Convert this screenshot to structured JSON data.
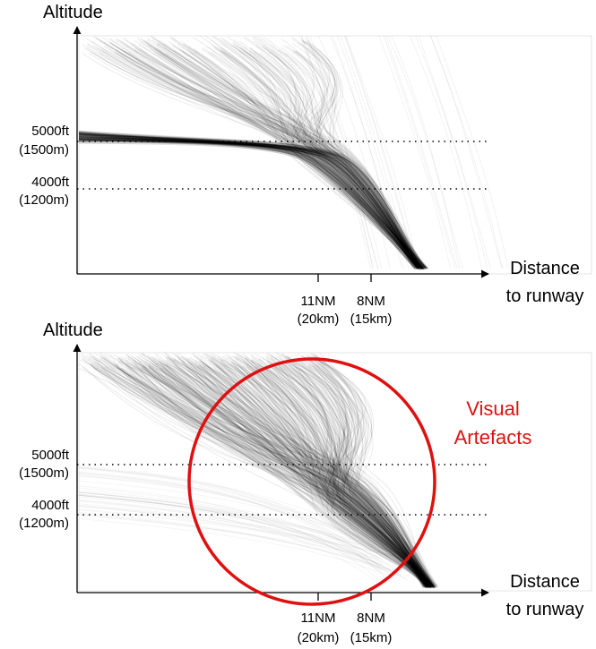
{
  "chart_data": [
    {
      "type": "line",
      "panel": "top",
      "ylabel": "Altitude",
      "xlabel_lines": [
        "Distance",
        "to runway"
      ],
      "reference_lines": [
        {
          "line1": "5000ft",
          "line2": "(1500m)"
        },
        {
          "line1": "4000ft",
          "line2": "(1200m)"
        }
      ],
      "x_ticks": [
        {
          "line1": "11NM",
          "line2": "(20km)"
        },
        {
          "line1": "8NM",
          "line2": "(15km)"
        }
      ],
      "series_color": "#000000",
      "line_opacity": 0.08,
      "annotation": null
    },
    {
      "type": "line",
      "panel": "bottom",
      "ylabel": "Altitude",
      "xlabel_lines": [
        "Distance",
        "to runway"
      ],
      "reference_lines": [
        {
          "line1": "5000ft",
          "line2": "(1500m)"
        },
        {
          "line1": "4000ft",
          "line2": "(1200m)"
        }
      ],
      "x_ticks": [
        {
          "line1": "11NM",
          "line2": "(20km)"
        },
        {
          "line1": "8NM",
          "line2": "(15km)"
        }
      ],
      "series_color": "#000000",
      "line_opacity": 0.08,
      "annotation": {
        "lines": [
          "Visual",
          "Artefacts"
        ],
        "color": "#e01010",
        "shape": "circle"
      }
    }
  ]
}
